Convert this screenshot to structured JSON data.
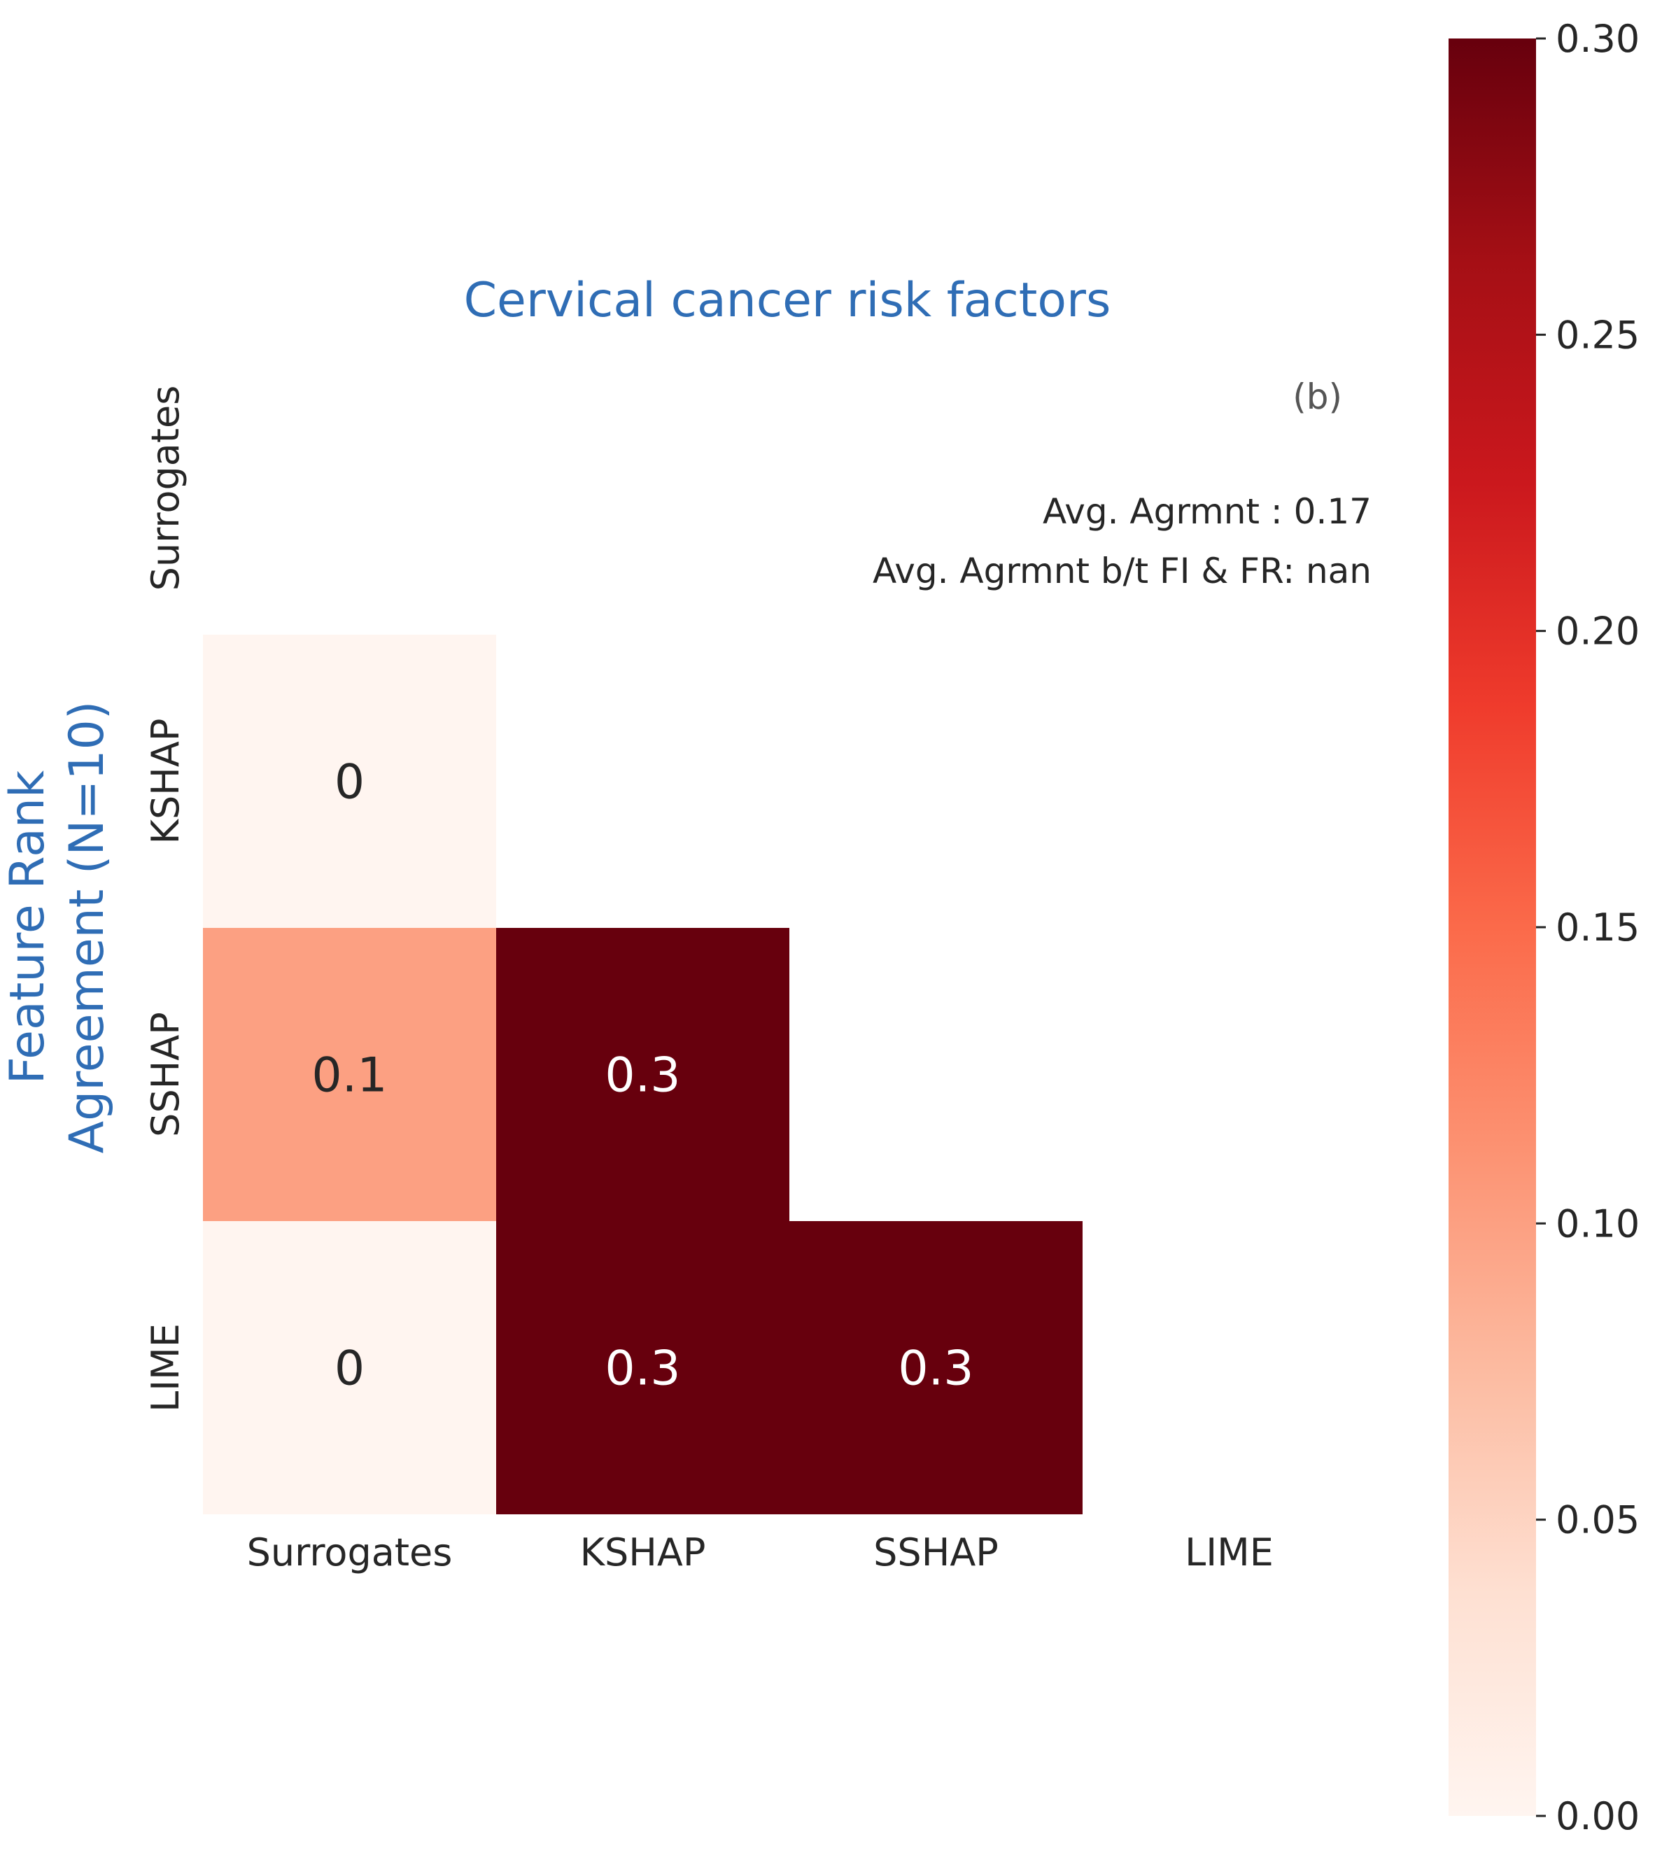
{
  "chart_data": {
    "type": "heatmap",
    "title": "Cervical cancer risk factors",
    "panel_label": "(b)",
    "ylabel": "Feature Rank\nAgreement (N=10)",
    "annotations": [
      "Avg. Agrmnt : 0.17",
      "Avg. Agrmnt b/t FI & FR: nan"
    ],
    "x_categories": [
      "Surrogates",
      "KSHAP",
      "SSHAP",
      "LIME"
    ],
    "y_categories": [
      "Surrogates",
      "KSHAP",
      "SSHAP",
      "LIME"
    ],
    "cells": [
      {
        "row": 1,
        "col": 0,
        "value": 0,
        "label": "0"
      },
      {
        "row": 2,
        "col": 0,
        "value": 0.1,
        "label": "0.1"
      },
      {
        "row": 2,
        "col": 1,
        "value": 0.3,
        "label": "0.3"
      },
      {
        "row": 3,
        "col": 0,
        "value": 0,
        "label": "0"
      },
      {
        "row": 3,
        "col": 1,
        "value": 0.3,
        "label": "0.3"
      },
      {
        "row": 3,
        "col": 2,
        "value": 0.3,
        "label": "0.3"
      }
    ],
    "colorbar": {
      "colormap": "Reds",
      "vmin": 0,
      "vmax": 0.3,
      "ticks": [
        "0.00",
        "0.05",
        "0.10",
        "0.15",
        "0.20",
        "0.25",
        "0.30"
      ]
    },
    "colors": {
      "title": "#2f6db5",
      "ylabel": "#2f6db5",
      "text": "#262626",
      "panel_label": "#555555"
    }
  }
}
